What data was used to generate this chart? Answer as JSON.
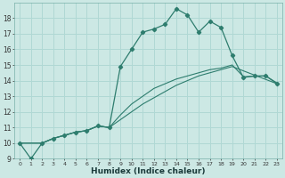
{
  "xlabel": "Humidex (Indice chaleur)",
  "bg_color": "#cce8e4",
  "line_color": "#2e7d6e",
  "grid_color": "#b0d8d4",
  "xlim": [
    -0.5,
    23.5
  ],
  "ylim": [
    9,
    19
  ],
  "yticks": [
    9,
    10,
    11,
    12,
    13,
    14,
    15,
    16,
    17,
    18
  ],
  "xticks": [
    0,
    1,
    2,
    3,
    4,
    5,
    6,
    7,
    8,
    9,
    10,
    11,
    12,
    13,
    14,
    15,
    16,
    17,
    18,
    19,
    20,
    21,
    22,
    23
  ],
  "s1_x": [
    0,
    1,
    2,
    3,
    4,
    5,
    6,
    7,
    8,
    9,
    10,
    11,
    12,
    13,
    14,
    15,
    16,
    17,
    18,
    19,
    20,
    21,
    22,
    23
  ],
  "s1_y": [
    10.0,
    9.0,
    10.0,
    10.3,
    10.5,
    10.7,
    10.8,
    11.1,
    11.0,
    14.9,
    16.0,
    17.1,
    17.3,
    17.6,
    18.6,
    18.2,
    17.1,
    17.8,
    17.4,
    15.6,
    14.2,
    14.3,
    14.3,
    13.8
  ],
  "s2_x": [
    0,
    2,
    3,
    4,
    5,
    6,
    7,
    8,
    9,
    10,
    11,
    12,
    13,
    14,
    15,
    16,
    17,
    18,
    19,
    23
  ],
  "s2_y": [
    10.0,
    10.0,
    10.3,
    10.5,
    10.7,
    10.8,
    11.1,
    11.0,
    11.5,
    12.0,
    12.5,
    12.9,
    13.3,
    13.7,
    14.0,
    14.3,
    14.5,
    14.7,
    14.9,
    13.8
  ],
  "s3_x": [
    0,
    2,
    3,
    4,
    5,
    6,
    7,
    8,
    9,
    10,
    11,
    12,
    13,
    14,
    15,
    16,
    17,
    18,
    19,
    20,
    21,
    22,
    23
  ],
  "s3_y": [
    10.0,
    10.0,
    10.3,
    10.5,
    10.7,
    10.8,
    11.1,
    11.0,
    11.8,
    12.5,
    13.0,
    13.5,
    13.8,
    14.1,
    14.3,
    14.5,
    14.7,
    14.8,
    15.0,
    14.25,
    14.28,
    14.3,
    13.85
  ]
}
